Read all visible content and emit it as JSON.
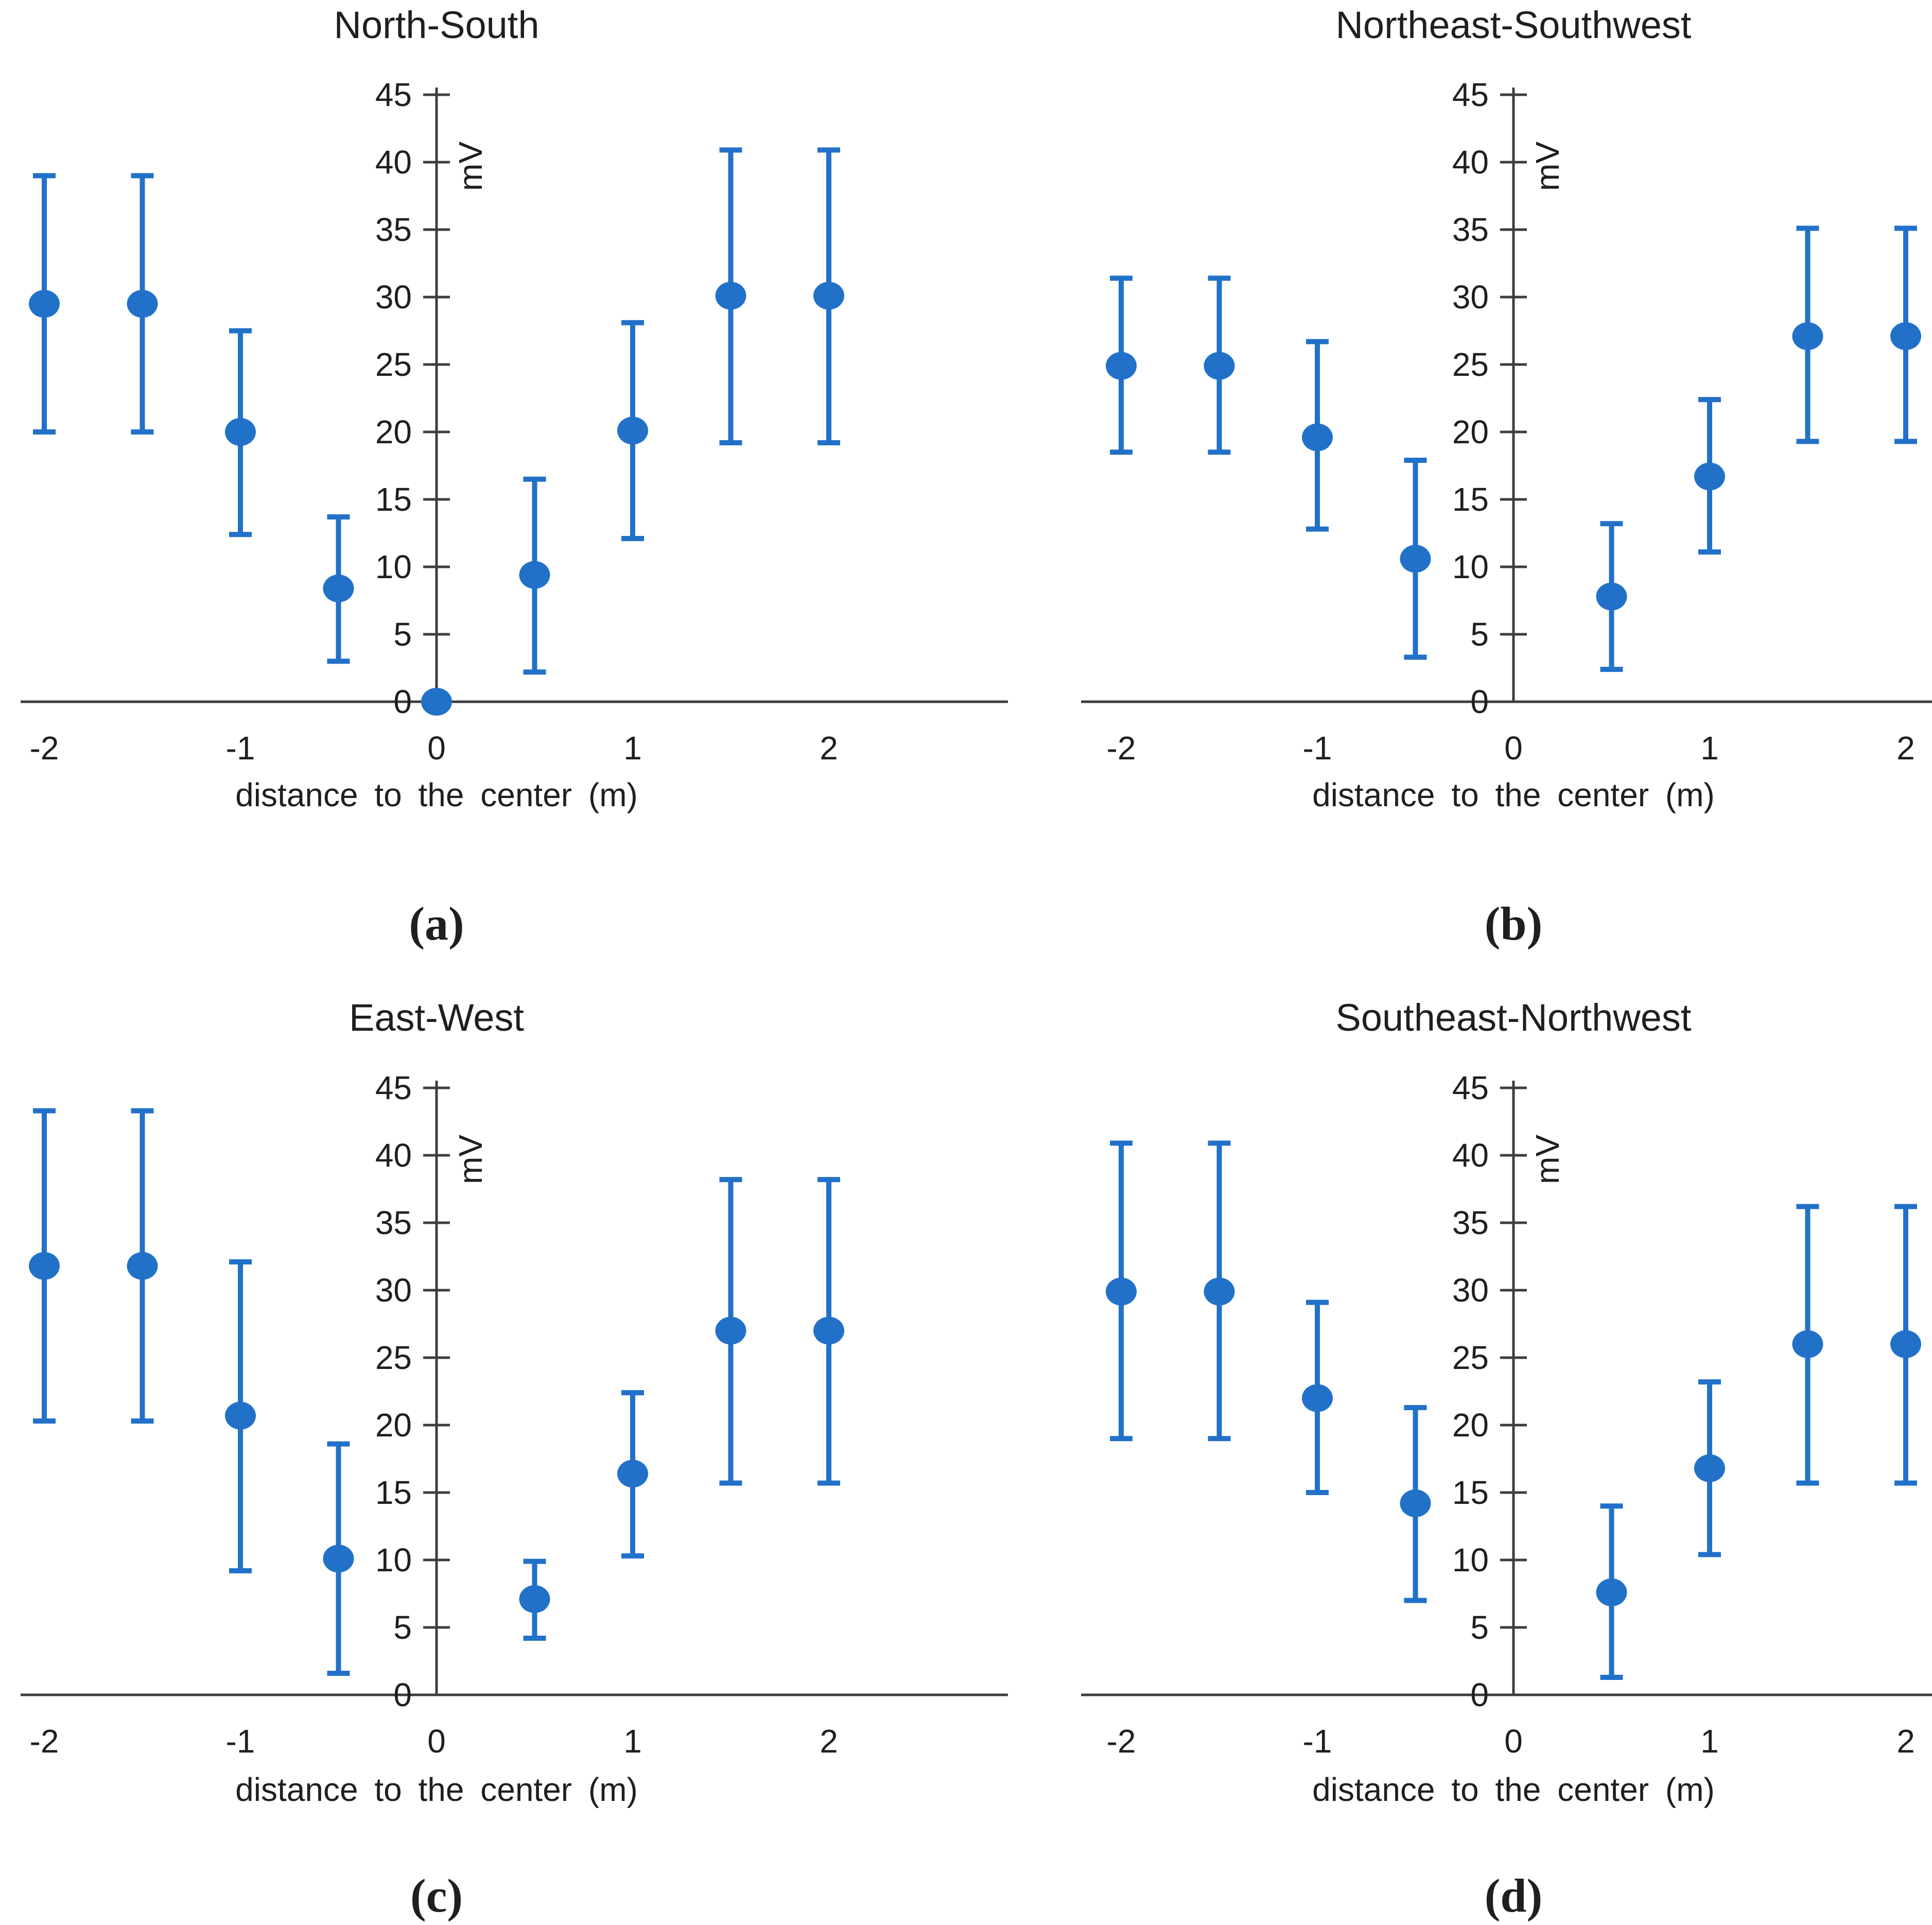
{
  "figure": {
    "background": "#ffffff",
    "accent_blue": "#2271c9",
    "axis_color": "#3d3d3d",
    "text_color": "#1f1f1f"
  },
  "chart_data": [
    {
      "type": "scatter",
      "title": "North-South",
      "panel_letter": "(a)",
      "xlabel": "distance to the center (m)",
      "ylabel": "mV",
      "xlim": [
        -2.1,
        2.9
      ],
      "ylim": [
        0,
        45
      ],
      "grid": false,
      "x_ticks": [
        -2,
        -1,
        0,
        1,
        2
      ],
      "y_ticks": [
        0,
        5,
        10,
        15,
        20,
        25,
        30,
        35,
        40,
        45
      ],
      "points": [
        {
          "x": -2,
          "y": 29.5,
          "lo": 20.0,
          "hi": 39.0
        },
        {
          "x": -1.5,
          "y": 29.5,
          "lo": 20.0,
          "hi": 39.0
        },
        {
          "x": -1,
          "y": 20.0,
          "lo": 12.4,
          "hi": 27.5
        },
        {
          "x": -0.5,
          "y": 8.4,
          "lo": 3.0,
          "hi": 13.7
        },
        {
          "x": 0,
          "y": 0.0,
          "lo": null,
          "hi": null
        },
        {
          "x": 0.5,
          "y": 9.4,
          "lo": 2.2,
          "hi": 16.5
        },
        {
          "x": 1,
          "y": 20.1,
          "lo": 12.1,
          "hi": 28.1
        },
        {
          "x": 1.5,
          "y": 30.1,
          "lo": 19.2,
          "hi": 40.9
        },
        {
          "x": 2,
          "y": 30.1,
          "lo": 19.2,
          "hi": 40.9
        }
      ]
    },
    {
      "type": "scatter",
      "title": "Northeast-Southwest",
      "panel_letter": "(b)",
      "xlabel": "distance to the center (m)",
      "ylabel": "mV",
      "xlim": [
        -2.2,
        2.15
      ],
      "ylim": [
        0,
        45
      ],
      "grid": false,
      "x_ticks": [
        -2,
        -1,
        0,
        1,
        2
      ],
      "y_ticks": [
        0,
        5,
        10,
        15,
        20,
        25,
        30,
        35,
        40,
        45
      ],
      "points": [
        {
          "x": -2,
          "y": 24.9,
          "lo": 18.5,
          "hi": 31.4
        },
        {
          "x": -1.5,
          "y": 24.9,
          "lo": 18.5,
          "hi": 31.4
        },
        {
          "x": -1,
          "y": 19.6,
          "lo": 12.8,
          "hi": 26.7
        },
        {
          "x": -0.5,
          "y": 10.6,
          "lo": 3.3,
          "hi": 17.9
        },
        {
          "x": 0.5,
          "y": 7.8,
          "lo": 2.4,
          "hi": 13.2
        },
        {
          "x": 1,
          "y": 16.7,
          "lo": 11.1,
          "hi": 22.4
        },
        {
          "x": 1.5,
          "y": 27.1,
          "lo": 19.3,
          "hi": 35.1
        },
        {
          "x": 2,
          "y": 27.1,
          "lo": 19.3,
          "hi": 35.1
        }
      ]
    },
    {
      "type": "scatter",
      "title": "East-West",
      "panel_letter": "(c)",
      "xlabel": "distance to the center (m)",
      "ylabel": "mV",
      "xlim": [
        -2.1,
        2.9
      ],
      "ylim": [
        0,
        45
      ],
      "grid": false,
      "x_ticks": [
        -2,
        -1,
        0,
        1,
        2
      ],
      "y_ticks": [
        0,
        5,
        10,
        15,
        20,
        25,
        30,
        35,
        40,
        45
      ],
      "points": [
        {
          "x": -2,
          "y": 31.8,
          "lo": 20.3,
          "hi": 43.3
        },
        {
          "x": -1.5,
          "y": 31.8,
          "lo": 20.3,
          "hi": 43.3
        },
        {
          "x": -1,
          "y": 20.7,
          "lo": 9.2,
          "hi": 32.1
        },
        {
          "x": -0.5,
          "y": 10.1,
          "lo": 1.6,
          "hi": 18.6
        },
        {
          "x": 0.5,
          "y": 7.1,
          "lo": 4.2,
          "hi": 9.9
        },
        {
          "x": 1,
          "y": 16.4,
          "lo": 10.3,
          "hi": 22.4
        },
        {
          "x": 1.5,
          "y": 27.0,
          "lo": 15.7,
          "hi": 38.2
        },
        {
          "x": 2,
          "y": 27.0,
          "lo": 15.7,
          "hi": 38.2
        }
      ]
    },
    {
      "type": "scatter",
      "title": "Southeast-Northwest",
      "panel_letter": "(d)",
      "xlabel": "distance to the center (m)",
      "ylabel": "mV",
      "xlim": [
        -2.2,
        2.15
      ],
      "ylim": [
        0,
        45
      ],
      "grid": false,
      "x_ticks": [
        -2,
        -1,
        0,
        1,
        2
      ],
      "y_ticks": [
        0,
        5,
        10,
        15,
        20,
        25,
        30,
        35,
        40,
        45
      ],
      "points": [
        {
          "x": -2,
          "y": 29.9,
          "lo": 19.0,
          "hi": 40.9
        },
        {
          "x": -1.5,
          "y": 29.9,
          "lo": 19.0,
          "hi": 40.9
        },
        {
          "x": -1,
          "y": 22.0,
          "lo": 15.0,
          "hi": 29.1
        },
        {
          "x": -0.5,
          "y": 14.2,
          "lo": 7.0,
          "hi": 21.3
        },
        {
          "x": 0.5,
          "y": 7.6,
          "lo": 1.3,
          "hi": 14.0
        },
        {
          "x": 1,
          "y": 16.8,
          "lo": 10.4,
          "hi": 23.2
        },
        {
          "x": 1.5,
          "y": 26.0,
          "lo": 15.7,
          "hi": 36.2
        },
        {
          "x": 2,
          "y": 26.0,
          "lo": 15.7,
          "hi": 36.2
        }
      ]
    }
  ]
}
